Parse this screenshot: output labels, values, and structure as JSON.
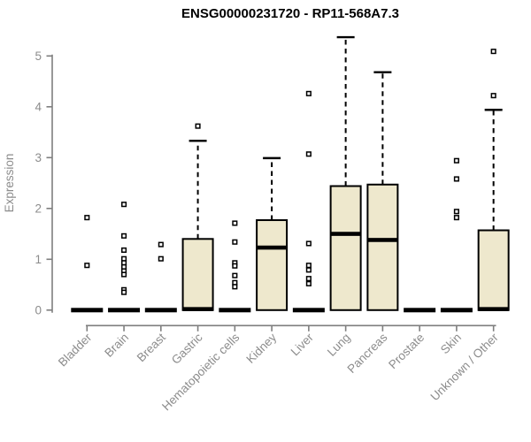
{
  "chart_data": {
    "type": "boxplot",
    "title": "ENSG00000231720 - RP11-568A7.3",
    "xlabel": "",
    "ylabel": "Expression",
    "ylim": [
      0,
      5.4
    ],
    "yticks": [
      0,
      1,
      2,
      3,
      4,
      5
    ],
    "grid": false,
    "legend": "none",
    "categories": [
      "Bladder",
      "Brain",
      "Breast",
      "Gastric",
      "Hematopoietic cells",
      "Kidney",
      "Liver",
      "Lung",
      "Pancreas",
      "Prostate",
      "Skin",
      "Unknown / Other"
    ],
    "boxes": [
      {
        "category": "Bladder",
        "q1": 0,
        "median": 0,
        "q3": 0,
        "whisker_low": 0,
        "whisker_high": 0,
        "outliers": [
          1.82,
          0.88
        ]
      },
      {
        "category": "Brain",
        "q1": 0,
        "median": 0,
        "q3": 0,
        "whisker_low": 0,
        "whisker_high": 0,
        "outliers": [
          2.08,
          1.46,
          1.18,
          1.01,
          0.93,
          0.85,
          0.77,
          0.7,
          0.4,
          0.35
        ]
      },
      {
        "category": "Breast",
        "q1": 0,
        "median": 0,
        "q3": 0,
        "whisker_low": 0,
        "whisker_high": 0,
        "outliers": [
          1.29,
          1.01
        ]
      },
      {
        "category": "Gastric",
        "q1": 0,
        "median": 0.02,
        "q3": 1.4,
        "whisker_low": 0,
        "whisker_high": 3.33,
        "outliers": [
          3.62
        ]
      },
      {
        "category": "Hematopoietic cells",
        "q1": 0,
        "median": 0,
        "q3": 0,
        "whisker_low": 0,
        "whisker_high": 0,
        "outliers": [
          1.71,
          1.34,
          0.93,
          0.87,
          0.68,
          0.54,
          0.46
        ]
      },
      {
        "category": "Kidney",
        "q1": 0,
        "median": 1.23,
        "q3": 1.77,
        "whisker_low": 0,
        "whisker_high": 2.99,
        "outliers": []
      },
      {
        "category": "Liver",
        "q1": 0,
        "median": 0,
        "q3": 0,
        "whisker_low": 0,
        "whisker_high": 0,
        "outliers": [
          4.26,
          3.07,
          1.31,
          0.88,
          0.79,
          0.62,
          0.52
        ]
      },
      {
        "category": "Lung",
        "q1": 0,
        "median": 1.5,
        "q3": 2.44,
        "whisker_low": 0,
        "whisker_high": 5.37,
        "outliers": []
      },
      {
        "category": "Pancreas",
        "q1": 0,
        "median": 1.38,
        "q3": 2.47,
        "whisker_low": 0,
        "whisker_high": 4.68,
        "outliers": []
      },
      {
        "category": "Prostate",
        "q1": 0,
        "median": 0,
        "q3": 0,
        "whisker_low": 0,
        "whisker_high": 0,
        "outliers": []
      },
      {
        "category": "Skin",
        "q1": 0,
        "median": 0,
        "q3": 0,
        "whisker_low": 0,
        "whisker_high": 0,
        "outliers": [
          2.94,
          2.58,
          1.94,
          1.82
        ]
      },
      {
        "category": "Unknown / Other",
        "q1": 0,
        "median": 0.02,
        "q3": 1.57,
        "whisker_low": 0,
        "whisker_high": 3.94,
        "outliers": [
          4.22,
          5.09
        ]
      }
    ],
    "colors": {
      "box_fill": "#EEE8CD",
      "box_border": "#000000",
      "median": "#000000",
      "whisker": "#000000",
      "outlier_border": "#000000",
      "outlier_fill": "#FFFFFF",
      "axis": "#7E7E7E",
      "tick_label": "#8C8C8C",
      "title": "#000000",
      "background": "#FFFFFF"
    }
  }
}
